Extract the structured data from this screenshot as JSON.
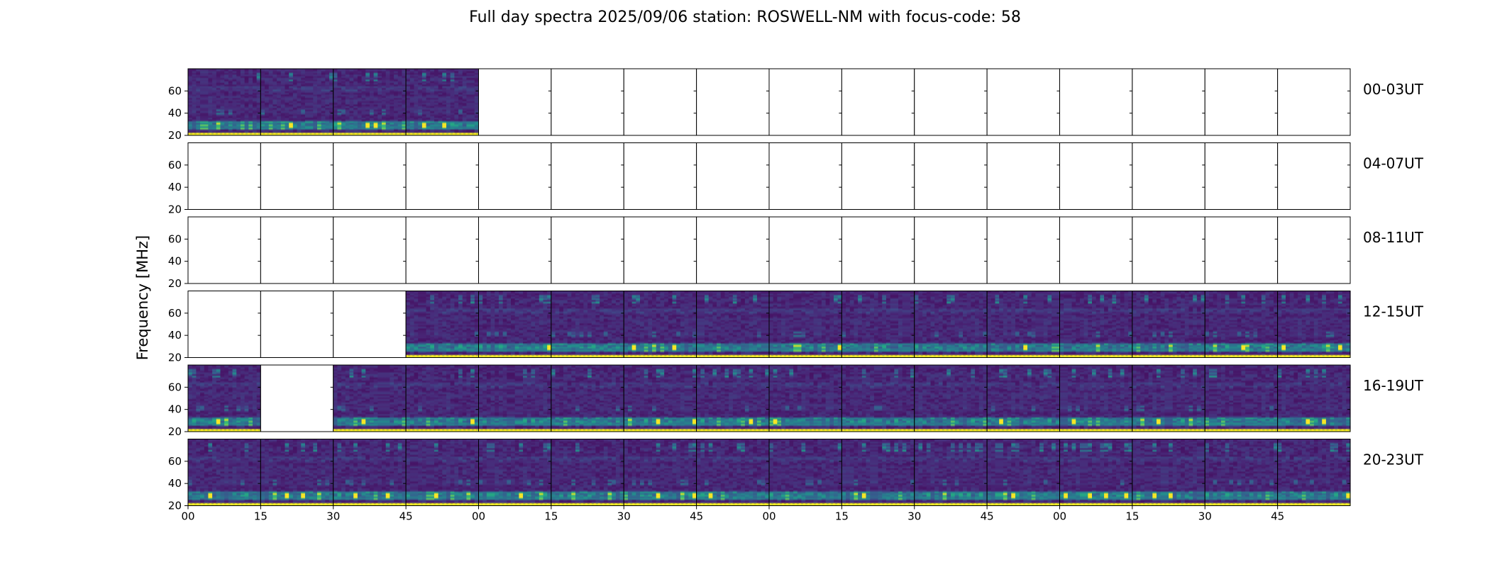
{
  "title": "Full day spectra 2025/09/06 station: ROSWELL-NM with focus-code: 58",
  "colors": {
    "viridis_dark": "#440154",
    "viridis_mid": "#31688e",
    "viridis_teal": "#21918c",
    "viridis_green": "#5ec962",
    "viridis_yellow": "#fde725"
  },
  "chart_data": {
    "type": "heatmap",
    "colormap": "viridis",
    "ylabel": "Frequency [MHz]",
    "ylim": [
      20,
      80
    ],
    "yticks": [
      20,
      40,
      60
    ],
    "xticks": [
      "00",
      "15",
      "30",
      "45",
      "00",
      "15",
      "30",
      "45",
      "00",
      "15",
      "30",
      "45",
      "00",
      "15",
      "30",
      "45"
    ],
    "rows": [
      {
        "label": "00-03UT",
        "has_data": [
          1,
          1,
          1,
          1,
          0,
          0,
          0,
          0,
          0,
          0,
          0,
          0,
          0,
          0,
          0,
          0
        ]
      },
      {
        "label": "04-07UT",
        "has_data": [
          0,
          0,
          0,
          0,
          0,
          0,
          0,
          0,
          0,
          0,
          0,
          0,
          0,
          0,
          0,
          0
        ]
      },
      {
        "label": "08-11UT",
        "has_data": [
          0,
          0,
          0,
          0,
          0,
          0,
          0,
          0,
          0,
          0,
          0,
          0,
          0,
          0,
          0,
          0
        ]
      },
      {
        "label": "12-15UT",
        "has_data": [
          0,
          0,
          0,
          1,
          1,
          1,
          1,
          1,
          1,
          1,
          1,
          1,
          1,
          1,
          1,
          1
        ]
      },
      {
        "label": "16-19UT",
        "has_data": [
          1,
          0,
          1,
          1,
          1,
          1,
          1,
          1,
          1,
          1,
          1,
          1,
          1,
          1,
          1,
          1
        ]
      },
      {
        "label": "20-23UT",
        "has_data": [
          1,
          1,
          1,
          1,
          1,
          1,
          1,
          1,
          1,
          1,
          1,
          1,
          1,
          1,
          1,
          1
        ]
      }
    ]
  }
}
